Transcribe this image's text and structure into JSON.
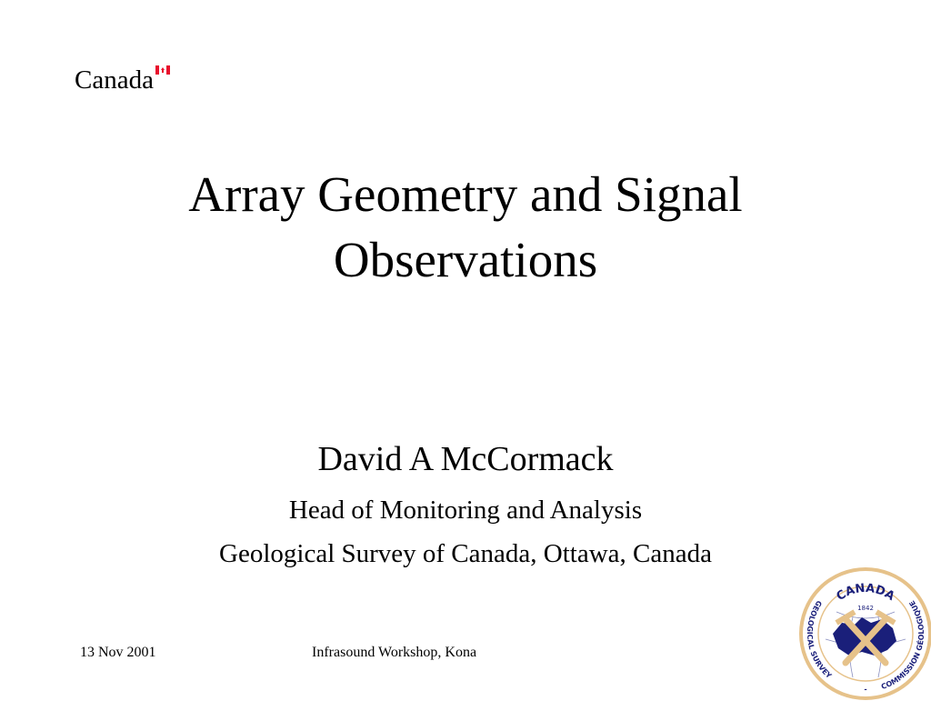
{
  "logo": {
    "wordmark": "Canada",
    "flag_color": "#e8112d"
  },
  "title": {
    "line1": "Array Geometry and Signal",
    "line2": "Observations"
  },
  "author": {
    "name": "David A McCormack",
    "position": "Head of Monitoring and Analysis",
    "affiliation": "Geological Survey of Canada, Ottawa, Canada"
  },
  "footer": {
    "date": "13 Nov 2001",
    "event": "Infrasound Workshop, Kona"
  },
  "seal": {
    "top_text": "CANADA",
    "year": "1842",
    "left_text": "GEOLOGICAL SURVEY",
    "right_text": "COMMISSION GÉOLOGIQUE",
    "separator": "-",
    "navy": "#1a1f7a",
    "gold": "#e6c28a"
  }
}
